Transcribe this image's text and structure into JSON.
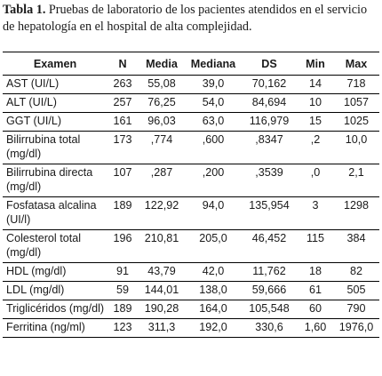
{
  "caption": {
    "label": "Tabla 1.",
    "text": "Pruebas de laboratorio de los pacientes atendidos en el servicio de hepatología en el hospital de alta complejidad."
  },
  "table": {
    "headers": [
      "Examen",
      "N",
      "Media",
      "Mediana",
      "DS",
      "Min",
      "Max"
    ],
    "rows": [
      [
        "AST (UI/L)",
        "263",
        "55,08",
        "39,0",
        "70,162",
        "14",
        "718"
      ],
      [
        "ALT (UI/L)",
        "257",
        "76,25",
        "54,0",
        "84,694",
        "10",
        "1057"
      ],
      [
        "GGT (UI/L)",
        "161",
        "96,03",
        "63,0",
        "116,979",
        "15",
        "1025"
      ],
      [
        "Bilirrubina total (mg/dl)",
        "173",
        ",774",
        ",600",
        ",8347",
        ",2",
        "10,0"
      ],
      [
        "Bilirrubina directa (mg/dl)",
        "107",
        ",287",
        ",200",
        ",3539",
        ",0",
        "2,1"
      ],
      [
        "Fosfatasa alcalina (UI/l)",
        "189",
        "122,92",
        "94,0",
        "135,954",
        "3",
        "1298"
      ],
      [
        "Colesterol total (mg/dl)",
        "196",
        "210,81",
        "205,0",
        "46,452",
        "115",
        "384"
      ],
      [
        "HDL (mg/dl)",
        "91",
        "43,79",
        "42,0",
        "11,762",
        "18",
        "82"
      ],
      [
        "LDL (mg/dl)",
        "59",
        "144,01",
        "138,0",
        "59,666",
        "61",
        "505"
      ],
      [
        "Triglicéridos (mg/dl)",
        "189",
        "190,28",
        "164,0",
        "105,548",
        "60",
        "790"
      ],
      [
        "Ferritina (ng/ml)",
        "123",
        "311,3",
        "192,0",
        "330,6",
        "1,60",
        "1976,0"
      ]
    ]
  }
}
